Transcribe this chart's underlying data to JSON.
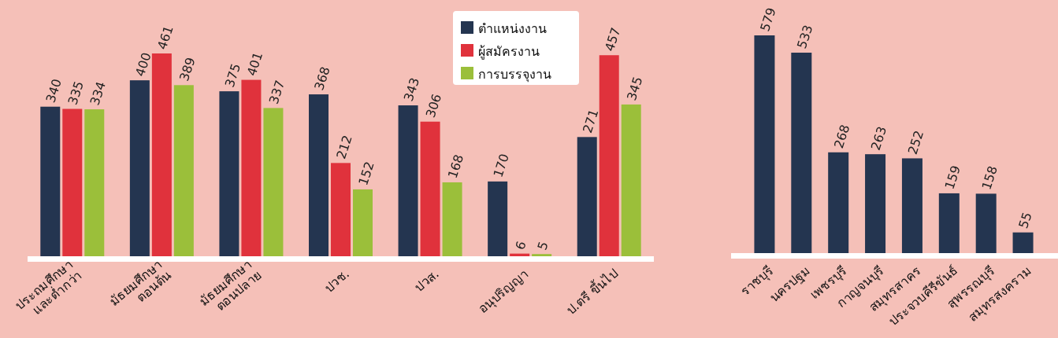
{
  "chart_data": [
    {
      "type": "bar",
      "categories": [
        "ประถมศึกษา\nและต่ำกว่า",
        "มัธยมศึกษา\nตอนต้น",
        "มัธยมศึกษา\nตอนปลาย",
        "ปวช.",
        "ปวส.",
        "อนุปริญญา",
        "ป.ตรี ขึ้นไป"
      ],
      "series": [
        {
          "name": "ตำแหน่งงาน",
          "color": "#243550",
          "values": [
            340,
            400,
            375,
            368,
            343,
            170,
            271
          ]
        },
        {
          "name": "ผู้สมัครงาน",
          "color": "#e0323c",
          "values": [
            335,
            461,
            401,
            212,
            306,
            6,
            457
          ]
        },
        {
          "name": "การบรรจุงาน",
          "color": "#9bbf3a",
          "values": [
            334,
            389,
            337,
            152,
            168,
            5,
            345
          ]
        }
      ],
      "data_labels": true,
      "legend": "top"
    },
    {
      "type": "bar",
      "categories": [
        "ราชบุรี",
        "นครปฐม",
        "เพชรบุรี",
        "กาญจนบุรี",
        "สมุทรสาคร",
        "ประจวบคีรีขันธ์",
        "สุพรรณบุรี",
        "สมุทรสงคราม"
      ],
      "values": [
        579,
        533,
        268,
        263,
        252,
        159,
        158,
        55
      ],
      "color": "#243550",
      "data_labels": true
    }
  ]
}
